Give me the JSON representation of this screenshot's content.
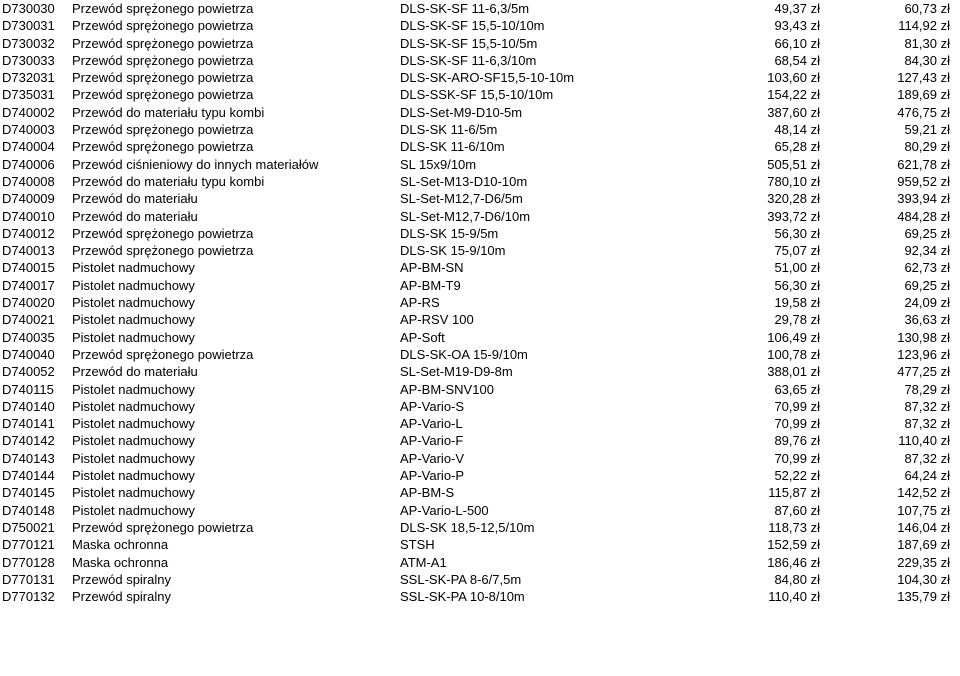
{
  "rows": [
    {
      "code": "D730030",
      "desc": "Przewód sprężonego powietrza",
      "model": "DLS-SK-SF 11-6,3/5m",
      "p1": "49,37 zł",
      "p2": "60,73 zł"
    },
    {
      "code": "D730031",
      "desc": "Przewód sprężonego powietrza",
      "model": "DLS-SK-SF 15,5-10/10m",
      "p1": "93,43 zł",
      "p2": "114,92 zł"
    },
    {
      "code": "D730032",
      "desc": "Przewód sprężonego powietrza",
      "model": "DLS-SK-SF 15,5-10/5m",
      "p1": "66,10 zł",
      "p2": "81,30 zł"
    },
    {
      "code": "D730033",
      "desc": "Przewód sprężonego powietrza",
      "model": "DLS-SK-SF 11-6,3/10m",
      "p1": "68,54 zł",
      "p2": "84,30 zł"
    },
    {
      "code": "D732031",
      "desc": "Przewód sprężonego powietrza",
      "model": "DLS-SK-ARO-SF15,5-10-10m",
      "p1": "103,60 zł",
      "p2": "127,43 zł"
    },
    {
      "code": "D735031",
      "desc": "Przewód sprężonego powietrza",
      "model": "DLS-SSK-SF 15,5-10/10m",
      "p1": "154,22 zł",
      "p2": "189,69 zł"
    },
    {
      "code": "D740002",
      "desc": "Przewód do materiału typu kombi",
      "model": "DLS-Set-M9-D10-5m",
      "p1": "387,60 zł",
      "p2": "476,75 zł"
    },
    {
      "code": "D740003",
      "desc": "Przewód sprężonego powietrza",
      "model": "DLS-SK 11-6/5m",
      "p1": "48,14 zł",
      "p2": "59,21 zł"
    },
    {
      "code": "D740004",
      "desc": "Przewód sprężonego powietrza",
      "model": "DLS-SK 11-6/10m",
      "p1": "65,28 zł",
      "p2": "80,29 zł"
    },
    {
      "code": "D740006",
      "desc": "Przewód ciśnieniowy do innych materiałów",
      "model": "SL 15x9/10m",
      "p1": "505,51 zł",
      "p2": "621,78 zł"
    },
    {
      "code": "D740008",
      "desc": "Przewód do materiału typu kombi",
      "model": "SL-Set-M13-D10-10m",
      "p1": "780,10 zł",
      "p2": "959,52 zł"
    },
    {
      "code": "D740009",
      "desc": "Przewód do materiału",
      "model": "SL-Set-M12,7-D6/5m",
      "p1": "320,28 zł",
      "p2": "393,94 zł"
    },
    {
      "code": "D740010",
      "desc": "Przewód do materiału",
      "model": "SL-Set-M12,7-D6/10m",
      "p1": "393,72 zł",
      "p2": "484,28 zł"
    },
    {
      "code": "D740012",
      "desc": "Przewód sprężonego powietrza",
      "model": "DLS-SK 15-9/5m",
      "p1": "56,30 zł",
      "p2": "69,25 zł"
    },
    {
      "code": "D740013",
      "desc": "Przewód sprężonego powietrza",
      "model": "DLS-SK 15-9/10m",
      "p1": "75,07 zł",
      "p2": "92,34 zł"
    },
    {
      "code": "D740015",
      "desc": "Pistolet nadmuchowy",
      "model": "AP-BM-SN",
      "p1": "51,00 zł",
      "p2": "62,73 zł"
    },
    {
      "code": "D740017",
      "desc": "Pistolet nadmuchowy",
      "model": "AP-BM-T9",
      "p1": "56,30 zł",
      "p2": "69,25 zł"
    },
    {
      "code": "D740020",
      "desc": "Pistolet nadmuchowy",
      "model": "AP-RS",
      "p1": "19,58 zł",
      "p2": "24,09 zł"
    },
    {
      "code": "D740021",
      "desc": "Pistolet nadmuchowy",
      "model": "AP-RSV 100",
      "p1": "29,78 zł",
      "p2": "36,63 zł"
    },
    {
      "code": "D740035",
      "desc": "Pistolet nadmuchowy",
      "model": "AP-Soft",
      "p1": "106,49 zł",
      "p2": "130,98 zł"
    },
    {
      "code": "D740040",
      "desc": "Przewód sprężonego powietrza",
      "model": "DLS-SK-OA 15-9/10m",
      "p1": "100,78 zł",
      "p2": "123,96 zł"
    },
    {
      "code": "D740052",
      "desc": "Przewód do materiału",
      "model": "SL-Set-M19-D9-8m",
      "p1": "388,01 zł",
      "p2": "477,25 zł"
    },
    {
      "code": "D740115",
      "desc": "Pistolet nadmuchowy",
      "model": "AP-BM-SNV100",
      "p1": "63,65 zł",
      "p2": "78,29 zł"
    },
    {
      "code": "D740140",
      "desc": "Pistolet nadmuchowy",
      "model": "AP-Vario-S",
      "p1": "70,99 zł",
      "p2": "87,32 zł"
    },
    {
      "code": "D740141",
      "desc": "Pistolet nadmuchowy",
      "model": "AP-Vario-L",
      "p1": "70,99 zł",
      "p2": "87,32 zł"
    },
    {
      "code": "D740142",
      "desc": "Pistolet nadmuchowy",
      "model": "AP-Vario-F",
      "p1": "89,76 zł",
      "p2": "110,40 zł"
    },
    {
      "code": "D740143",
      "desc": "Pistolet nadmuchowy",
      "model": "AP-Vario-V",
      "p1": "70,99 zł",
      "p2": "87,32 zł"
    },
    {
      "code": "D740144",
      "desc": "Pistolet nadmuchowy",
      "model": "AP-Vario-P",
      "p1": "52,22 zł",
      "p2": "64,24 zł"
    },
    {
      "code": "D740145",
      "desc": "Pistolet nadmuchowy",
      "model": "AP-BM-S",
      "p1": "115,87 zł",
      "p2": "142,52 zł"
    },
    {
      "code": "D740148",
      "desc": "Pistolet nadmuchowy",
      "model": "AP-Vario-L-500",
      "p1": "87,60 zł",
      "p2": "107,75 zł"
    },
    {
      "code": "D750021",
      "desc": "Przewód sprężonego powietrza",
      "model": "DLS-SK 18,5-12,5/10m",
      "p1": "118,73 zł",
      "p2": "146,04 zł"
    },
    {
      "code": "D770121",
      "desc": "Maska ochronna",
      "model": "STSH",
      "p1": "152,59 zł",
      "p2": "187,69 zł"
    },
    {
      "code": "D770128",
      "desc": "Maska ochronna",
      "model": "ATM-A1",
      "p1": "186,46 zł",
      "p2": "229,35 zł"
    },
    {
      "code": "D770131",
      "desc": "Przewód spiralny",
      "model": "SSL-SK-PA 8-6/7,5m",
      "p1": "84,80 zł",
      "p2": "104,30 zł"
    },
    {
      "code": "D770132",
      "desc": "Przewód spiralny",
      "model": "SSL-SK-PA 10-8/10m",
      "p1": "110,40 zł",
      "p2": "135,79 zł"
    }
  ]
}
